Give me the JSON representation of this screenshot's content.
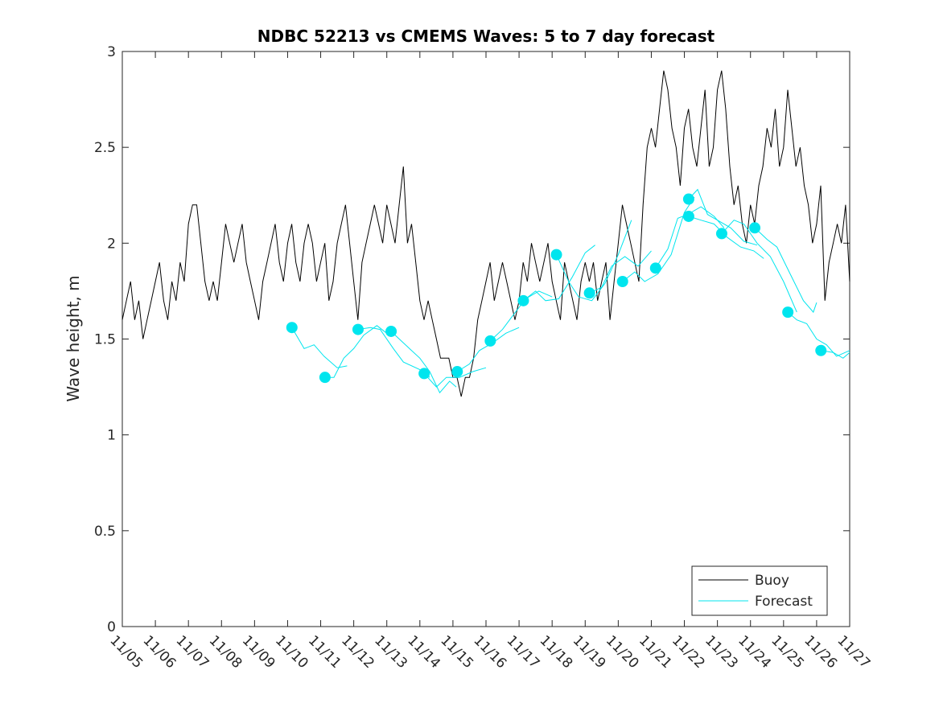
{
  "chart_data": {
    "type": "line",
    "title": "NDBC 52213 vs CMEMS Waves: 5 to 7 day forecast",
    "xlabel": "",
    "ylabel": "Wave height, m",
    "ylim": [
      0,
      3
    ],
    "yticks": [
      "0",
      "0.5",
      "1",
      "1.5",
      "2",
      "2.5",
      "3"
    ],
    "xticks": [
      "11/05",
      "11/06",
      "11/07",
      "11/08",
      "11/09",
      "11/10",
      "11/11",
      "11/12",
      "11/13",
      "11/14",
      "11/15",
      "11/16",
      "11/17",
      "11/18",
      "11/19",
      "11/20",
      "11/21",
      "11/22",
      "11/23",
      "11/24",
      "11/25",
      "11/26",
      "11/27"
    ],
    "x_units": "days since 11/05",
    "legend": {
      "placement": "bottom-right",
      "entries": [
        "Buoy",
        "Forecast"
      ]
    },
    "colors": {
      "buoy": "#000000",
      "forecast": "#00e5ee"
    },
    "buoy": {
      "step_days": 0.125,
      "values": [
        1.6,
        1.7,
        1.8,
        1.6,
        1.7,
        1.5,
        1.6,
        1.7,
        1.8,
        1.9,
        1.7,
        1.6,
        1.8,
        1.7,
        1.9,
        1.8,
        2.1,
        2.2,
        2.2,
        2.0,
        1.8,
        1.7,
        1.8,
        1.7,
        1.9,
        2.1,
        2.0,
        1.9,
        2.0,
        2.1,
        1.9,
        1.8,
        1.7,
        1.6,
        1.8,
        1.9,
        2.0,
        2.1,
        1.9,
        1.8,
        2.0,
        2.1,
        1.9,
        1.8,
        2.0,
        2.1,
        2.0,
        1.8,
        1.9,
        2.0,
        1.7,
        1.8,
        2.0,
        2.1,
        2.2,
        2.0,
        1.8,
        1.6,
        1.9,
        2.0,
        2.1,
        2.2,
        2.1,
        2.0,
        2.2,
        2.1,
        2.0,
        2.2,
        2.4,
        2.0,
        2.1,
        1.9,
        1.7,
        1.6,
        1.7,
        1.6,
        1.5,
        1.4,
        1.4,
        1.4,
        1.3,
        1.3,
        1.2,
        1.3,
        1.3,
        1.4,
        1.6,
        1.7,
        1.8,
        1.9,
        1.7,
        1.8,
        1.9,
        1.8,
        1.7,
        1.6,
        1.7,
        1.9,
        1.8,
        2.0,
        1.9,
        1.8,
        1.9,
        2.0,
        1.8,
        1.7,
        1.6,
        1.9,
        1.8,
        1.7,
        1.6,
        1.8,
        1.9,
        1.8,
        1.9,
        1.7,
        1.8,
        1.9,
        1.6,
        1.8,
        2.0,
        2.2,
        2.1,
        2.0,
        1.9,
        1.8,
        2.2,
        2.5,
        2.6,
        2.5,
        2.7,
        2.9,
        2.8,
        2.6,
        2.5,
        2.3,
        2.6,
        2.7,
        2.5,
        2.4,
        2.6,
        2.8,
        2.4,
        2.5,
        2.8,
        2.9,
        2.7,
        2.4,
        2.2,
        2.3,
        2.1,
        2.0,
        2.2,
        2.1,
        2.3,
        2.4,
        2.6,
        2.5,
        2.7,
        2.4,
        2.5,
        2.8,
        2.6,
        2.4,
        2.5,
        2.3,
        2.2,
        2.0,
        2.1,
        2.3,
        1.7,
        1.9,
        2.0,
        2.1,
        2.0,
        2.2,
        1.8
      ]
    },
    "forecast_points": [
      [
        5.13,
        1.56
      ],
      [
        6.13,
        1.3
      ],
      [
        7.13,
        1.55
      ],
      [
        8.13,
        1.54
      ],
      [
        9.13,
        1.32
      ],
      [
        10.13,
        1.33
      ],
      [
        11.13,
        1.49
      ],
      [
        12.13,
        1.7
      ],
      [
        13.13,
        1.94
      ],
      [
        14.13,
        1.74
      ],
      [
        15.13,
        1.8
      ],
      [
        16.13,
        1.87
      ],
      [
        17.13,
        2.23
      ],
      [
        17.13,
        2.14
      ],
      [
        18.13,
        2.05
      ],
      [
        19.13,
        2.08
      ],
      [
        20.13,
        1.64
      ],
      [
        21.13,
        1.44
      ]
    ],
    "forecast_segments": [
      [
        [
          5.13,
          1.56
        ],
        [
          5.5,
          1.45
        ],
        [
          5.8,
          1.47
        ],
        [
          6.1,
          1.41
        ],
        [
          6.5,
          1.35
        ],
        [
          6.8,
          1.36
        ]
      ],
      [
        [
          6.13,
          1.3
        ],
        [
          6.4,
          1.3
        ],
        [
          6.7,
          1.4
        ],
        [
          7.0,
          1.45
        ],
        [
          7.3,
          1.52
        ],
        [
          7.7,
          1.57
        ],
        [
          8.0,
          1.53
        ]
      ],
      [
        [
          7.13,
          1.55
        ],
        [
          7.5,
          1.56
        ],
        [
          7.8,
          1.55
        ],
        [
          8.2,
          1.45
        ],
        [
          8.5,
          1.38
        ],
        [
          9.0,
          1.34
        ],
        [
          9.3,
          1.3
        ]
      ],
      [
        [
          8.13,
          1.54
        ],
        [
          8.5,
          1.48
        ],
        [
          9.0,
          1.4
        ],
        [
          9.3,
          1.33
        ],
        [
          9.6,
          1.22
        ],
        [
          9.9,
          1.28
        ],
        [
          10.1,
          1.25
        ]
      ],
      [
        [
          9.13,
          1.32
        ],
        [
          9.5,
          1.25
        ],
        [
          9.8,
          1.3
        ],
        [
          10.2,
          1.3
        ],
        [
          10.6,
          1.33
        ],
        [
          11.0,
          1.35
        ]
      ],
      [
        [
          10.13,
          1.33
        ],
        [
          10.5,
          1.37
        ],
        [
          10.8,
          1.44
        ],
        [
          11.2,
          1.48
        ],
        [
          11.6,
          1.53
        ],
        [
          12.0,
          1.56
        ]
      ],
      [
        [
          11.13,
          1.49
        ],
        [
          11.5,
          1.55
        ],
        [
          11.8,
          1.62
        ],
        [
          12.2,
          1.71
        ],
        [
          12.6,
          1.75
        ],
        [
          13.0,
          1.72
        ]
      ],
      [
        [
          12.13,
          1.7
        ],
        [
          12.5,
          1.75
        ],
        [
          12.8,
          1.7
        ],
        [
          13.2,
          1.71
        ],
        [
          13.6,
          1.82
        ],
        [
          14.0,
          1.95
        ],
        [
          14.3,
          1.99
        ]
      ],
      [
        [
          13.13,
          1.94
        ],
        [
          13.5,
          1.8
        ],
        [
          13.8,
          1.72
        ],
        [
          14.2,
          1.7
        ],
        [
          14.6,
          1.79
        ],
        [
          15.0,
          1.94
        ],
        [
          15.4,
          2.12
        ]
      ],
      [
        [
          14.13,
          1.74
        ],
        [
          14.5,
          1.77
        ],
        [
          14.8,
          1.88
        ],
        [
          15.2,
          1.93
        ],
        [
          15.6,
          1.88
        ],
        [
          16.0,
          1.96
        ]
      ],
      [
        [
          15.13,
          1.8
        ],
        [
          15.5,
          1.85
        ],
        [
          15.8,
          1.8
        ],
        [
          16.2,
          1.84
        ],
        [
          16.6,
          1.94
        ],
        [
          17.0,
          2.16
        ],
        [
          17.3,
          2.24
        ]
      ],
      [
        [
          16.13,
          1.87
        ],
        [
          16.5,
          1.97
        ],
        [
          16.8,
          2.13
        ],
        [
          17.1,
          2.15
        ],
        [
          17.5,
          2.19
        ],
        [
          17.9,
          2.14
        ],
        [
          18.2,
          2.08
        ]
      ],
      [
        [
          17.13,
          2.23
        ],
        [
          17.4,
          2.28
        ],
        [
          17.7,
          2.15
        ],
        [
          18.0,
          2.12
        ],
        [
          18.4,
          2.08
        ],
        [
          18.8,
          2.01
        ],
        [
          19.2,
          1.99
        ]
      ],
      [
        [
          17.13,
          2.14
        ],
        [
          17.5,
          2.12
        ],
        [
          17.9,
          2.1
        ],
        [
          18.3,
          2.03
        ],
        [
          18.7,
          1.98
        ],
        [
          19.1,
          1.96
        ],
        [
          19.4,
          1.92
        ]
      ],
      [
        [
          18.13,
          2.05
        ],
        [
          18.5,
          2.12
        ],
        [
          18.8,
          2.1
        ],
        [
          19.2,
          2.0
        ],
        [
          19.6,
          1.93
        ],
        [
          20.0,
          1.8
        ],
        [
          20.4,
          1.64
        ]
      ],
      [
        [
          19.13,
          2.08
        ],
        [
          19.5,
          2.02
        ],
        [
          19.8,
          1.98
        ],
        [
          20.2,
          1.84
        ],
        [
          20.6,
          1.7
        ],
        [
          20.9,
          1.64
        ],
        [
          21.0,
          1.69
        ]
      ],
      [
        [
          20.13,
          1.64
        ],
        [
          20.4,
          1.6
        ],
        [
          20.7,
          1.58
        ],
        [
          21.0,
          1.5
        ],
        [
          21.3,
          1.47
        ],
        [
          21.6,
          1.41
        ],
        [
          22.0,
          1.44
        ]
      ],
      [
        [
          21.13,
          1.44
        ],
        [
          21.5,
          1.43
        ],
        [
          21.8,
          1.4
        ],
        [
          22.0,
          1.43
        ]
      ]
    ]
  }
}
